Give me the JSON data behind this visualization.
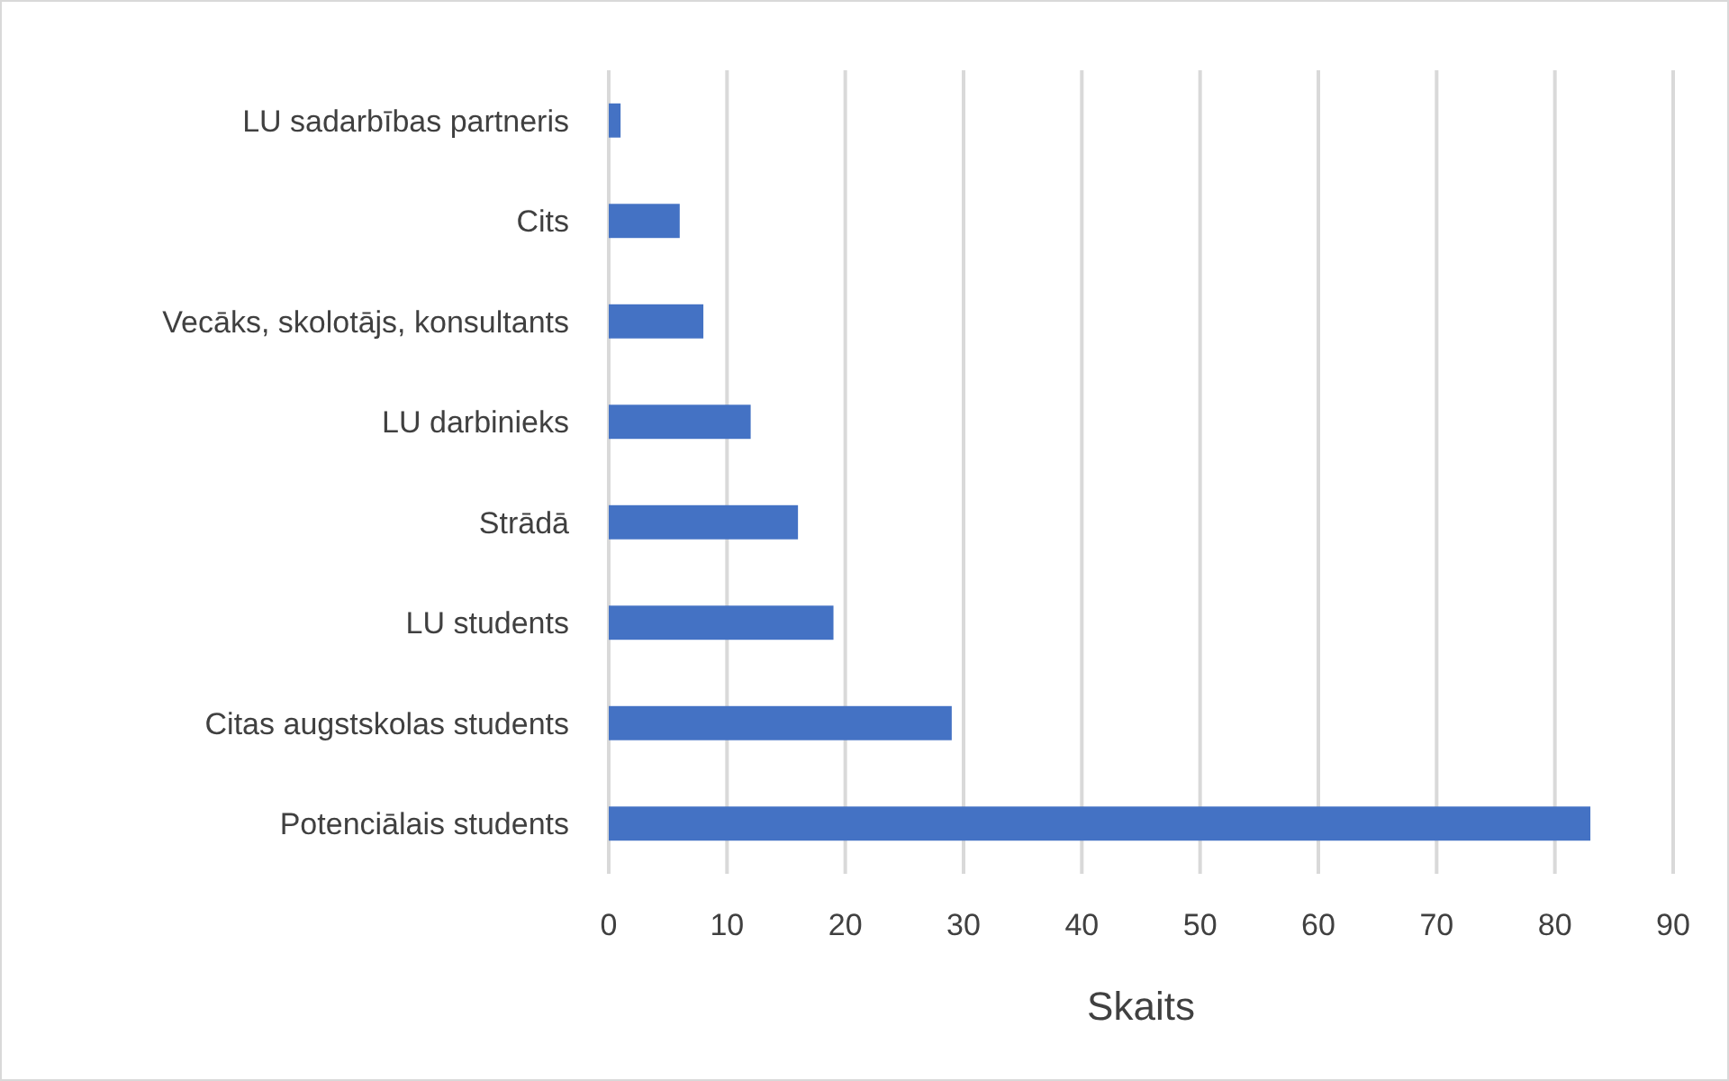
{
  "chart_data": {
    "type": "bar",
    "orientation": "horizontal",
    "xlabel": "Skaits",
    "categories": [
      "LU sadarbības partneris",
      "Cits",
      "Vecāks, skolotājs, konsultants",
      "LU darbinieks",
      "Strādā",
      "LU students",
      "Citas augstskolas students",
      "Potenciālais students"
    ],
    "values": [
      1,
      6,
      8,
      12,
      16,
      19,
      29,
      83
    ],
    "color": "#4472c4",
    "xlim": [
      0,
      90
    ],
    "xticks": [
      0,
      10,
      20,
      30,
      40,
      50,
      60,
      70,
      80,
      90
    ],
    "grid": "x"
  }
}
